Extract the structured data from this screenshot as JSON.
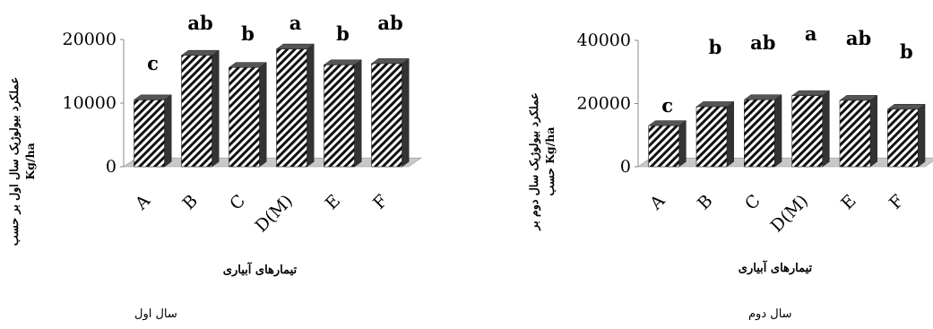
{
  "chart_data": [
    {
      "type": "bar",
      "categories": [
        "A",
        "B",
        "C",
        "D(M)",
        "E",
        "F"
      ],
      "values": [
        10500,
        17500,
        15600,
        18500,
        16000,
        16200
      ],
      "letters": [
        "c",
        "ab",
        "b",
        "a",
        "b",
        "ab"
      ],
      "ylabel_line1": "عملکرد بیولوژیک سال اول بر حسب",
      "ylabel_line2": "Kg/ha",
      "xlabel": "تیمارهای آبیاری",
      "yticks": [
        0,
        10000,
        20000
      ],
      "ylim": [
        0,
        20000
      ],
      "caption": "سال اول",
      "bar_pattern": "diagonal-hatch-black-white",
      "floor_color": "#c8c8c8"
    },
    {
      "type": "bar",
      "categories": [
        "A",
        "B",
        "C",
        "D(M)",
        "E",
        "F"
      ],
      "values": [
        13000,
        19000,
        21200,
        22500,
        21000,
        18200
      ],
      "letters": [
        "c",
        "b",
        "ab",
        "a",
        "ab",
        "b"
      ],
      "ylabel_line1": "عملکرد بیولوژیک سال دوم بر",
      "ylabel_line2": "حسب Kg/ha",
      "xlabel": "تیمارهای آبیاری",
      "yticks": [
        0,
        20000,
        40000
      ],
      "ylim": [
        0,
        40000
      ],
      "caption": "سال دوم",
      "bar_pattern": "diagonal-hatch-black-white",
      "floor_color": "#c8c8c8"
    }
  ]
}
